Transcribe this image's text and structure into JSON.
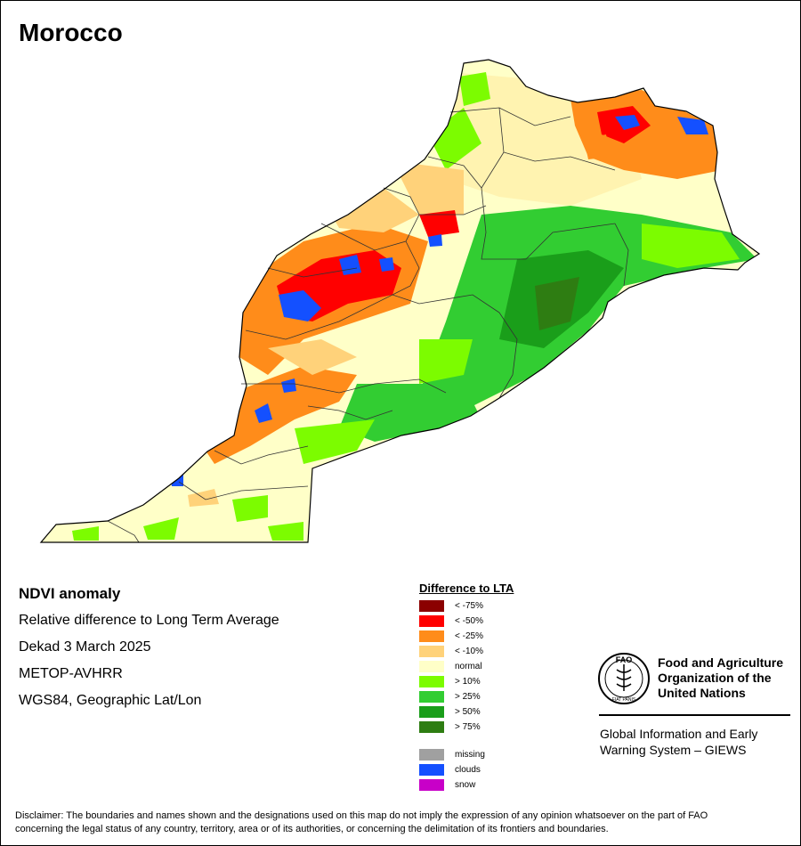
{
  "title": "Morocco",
  "info": {
    "product": "NDVI anomaly",
    "description": "Relative difference to Long Term Average",
    "period": "Dekad 3 March 2025",
    "sensor": "METOP-AVHRR",
    "projection": "WGS84, Geographic Lat/Lon"
  },
  "legend": {
    "title": "Difference to LTA",
    "classes": [
      {
        "label": "< -75%",
        "color": "#8b0000"
      },
      {
        "label": "< -50%",
        "color": "#ff0000"
      },
      {
        "label": "< -25%",
        "color": "#ff8c1a"
      },
      {
        "label": "< -10%",
        "color": "#ffd27a"
      },
      {
        "label": "normal",
        "color": "#ffffc8"
      },
      {
        "label": "> 10%",
        "color": "#7cfc00"
      },
      {
        "label": "> 25%",
        "color": "#32cd32"
      },
      {
        "label": "> 50%",
        "color": "#1a9e1a"
      },
      {
        "label": "> 75%",
        "color": "#2e7d12"
      }
    ],
    "extras": [
      {
        "label": "missing",
        "color": "#a0a0a0"
      },
      {
        "label": "clouds",
        "color": "#1450ff"
      },
      {
        "label": "snow",
        "color": "#c800c8"
      }
    ]
  },
  "org": {
    "line1": "Food and Agriculture",
    "line2": "Organization of the",
    "line3": "United Nations",
    "giews_line1": "Global Information and Early",
    "giews_line2": "Warning System – GIEWS",
    "logo_text": "FAO",
    "logo_motto": "FIAT PANIS"
  },
  "disclaimer_line1": "Disclaimer: The boundaries and names shown and the designations used on this map do not imply the expression of any opinion whatsoever on the part of FAO",
  "disclaimer_line2": "concerning the legal status of any country, territory, area or of its authorities, or concerning the delimitation of its frontiers and boundaries."
}
